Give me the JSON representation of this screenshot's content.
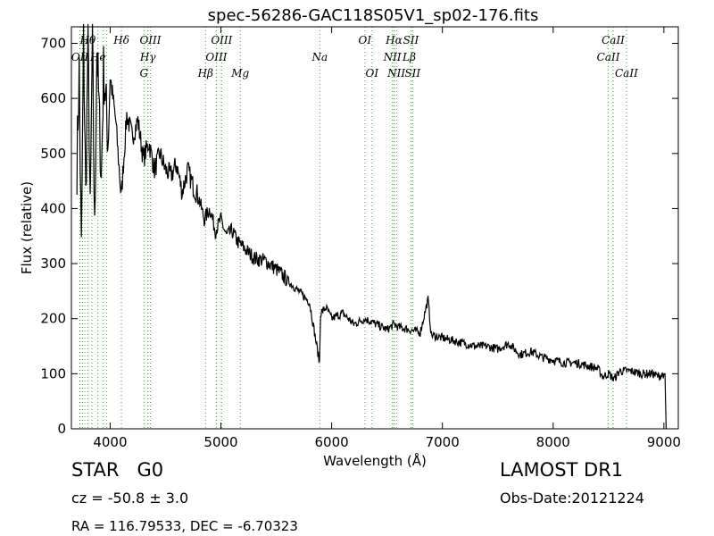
{
  "chart_data": {
    "type": "line",
    "title": "spec-56286-GAC118S05V1_sp02-176.fits",
    "xlabel": "Wavelength (Å)",
    "ylabel": "Flux (relative)",
    "xlim": [
      3650,
      9130
    ],
    "ylim": [
      0,
      730
    ],
    "xticks": [
      4000,
      5000,
      6000,
      7000,
      8000,
      9000
    ],
    "yticks": [
      0,
      100,
      200,
      300,
      400,
      500,
      600,
      700
    ],
    "grid": false,
    "line_color": "#000000",
    "marker_color": "#33aa33",
    "series": [
      {
        "x": [
          3700,
          3720,
          3740,
          3760,
          3780,
          3800,
          3820,
          3840,
          3860,
          3880,
          3900,
          3920,
          3940,
          3960,
          3980,
          4000,
          4050,
          4100,
          4150,
          4200,
          4250,
          4300,
          4350,
          4400,
          4450,
          4500,
          4550,
          4600,
          4650,
          4700,
          4750,
          4800,
          4850,
          4900,
          4950,
          5000,
          5050,
          5100,
          5150,
          5200,
          5300,
          5400,
          5500,
          5600,
          5700,
          5800,
          5890,
          5900,
          5950,
          6000,
          6100,
          6200,
          6300,
          6400,
          6500,
          6563,
          6600,
          6700,
          6800,
          6870,
          6900,
          7000,
          7100,
          7200,
          7300,
          7400,
          7500,
          7600,
          7700,
          7800,
          7900,
          8000,
          8100,
          8200,
          8300,
          8400,
          8450,
          8500,
          8550,
          8600,
          8700,
          8800,
          8900,
          8950,
          9000,
          9010,
          9020
        ],
        "y": [
          480,
          650,
          320,
          700,
          420,
          720,
          380,
          720,
          350,
          690,
          580,
          450,
          650,
          600,
          520,
          640,
          560,
          420,
          570,
          530,
          560,
          490,
          520,
          470,
          500,
          470,
          460,
          480,
          430,
          470,
          440,
          420,
          380,
          400,
          360,
          380,
          350,
          360,
          340,
          330,
          310,
          305,
          290,
          270,
          250,
          230,
          120,
          210,
          220,
          200,
          210,
          190,
          200,
          190,
          180,
          190,
          185,
          180,
          175,
          235,
          170,
          165,
          160,
          155,
          150,
          150,
          145,
          155,
          135,
          140,
          130,
          125,
          120,
          120,
          115,
          110,
          95,
          100,
          90,
          105,
          105,
          100,
          100,
          95,
          100,
          100,
          0
        ]
      }
    ],
    "annotations": [
      {
        "label": "Hθ",
        "x": 3798,
        "row": 0
      },
      {
        "label": "OII",
        "x": 3727,
        "row": 1
      },
      {
        "label": "He",
        "x": 3889,
        "row": 1
      },
      {
        "label": "Hδ",
        "x": 4102,
        "row": 0
      },
      {
        "label": "Hγ",
        "x": 4341,
        "row": 1
      },
      {
        "label": "G",
        "x": 4305,
        "row": 2
      },
      {
        "label": "OIII",
        "x": 4363,
        "row": 0
      },
      {
        "label": "OIII",
        "x": 5007,
        "row": 0
      },
      {
        "label": "OIII",
        "x": 4959,
        "row": 1
      },
      {
        "label": "Hβ",
        "x": 4861,
        "row": 2
      },
      {
        "label": "Mg",
        "x": 5175,
        "row": 2
      },
      {
        "label": "Na",
        "x": 5893,
        "row": 1
      },
      {
        "label": "OI",
        "x": 6300,
        "row": 0
      },
      {
        "label": "OI",
        "x": 6364,
        "row": 2
      },
      {
        "label": "Hα",
        "x": 6563,
        "row": 0
      },
      {
        "label": "SII",
        "x": 6716,
        "row": 0
      },
      {
        "label": "NII",
        "x": 6548,
        "row": 1
      },
      {
        "label": "Lβ",
        "x": 6700,
        "row": 1
      },
      {
        "label": "NII",
        "x": 6584,
        "row": 2
      },
      {
        "label": "SII",
        "x": 6731,
        "row": 2
      },
      {
        "label": "CaII",
        "x": 8542,
        "row": 0
      },
      {
        "label": "CaII",
        "x": 8498,
        "row": 1
      },
      {
        "label": "CaII",
        "x": 8662,
        "row": 2
      }
    ],
    "marker_lines": [
      3727,
      3750,
      3771,
      3798,
      3835,
      3889,
      3934,
      3969,
      4102,
      4305,
      4341,
      4363,
      4861,
      4959,
      5007,
      5175,
      5893,
      6300,
      6364,
      6548,
      6563,
      6584,
      6716,
      6731,
      8498,
      8542,
      8662
    ]
  },
  "info": {
    "object_class": "STAR",
    "subclass": "G0",
    "cz": "cz = -50.8 ± 3.0",
    "coords": "RA = 116.79533, DEC = -6.70323",
    "survey": "LAMOST DR1",
    "obs_date": "Obs-Date:20121224"
  }
}
